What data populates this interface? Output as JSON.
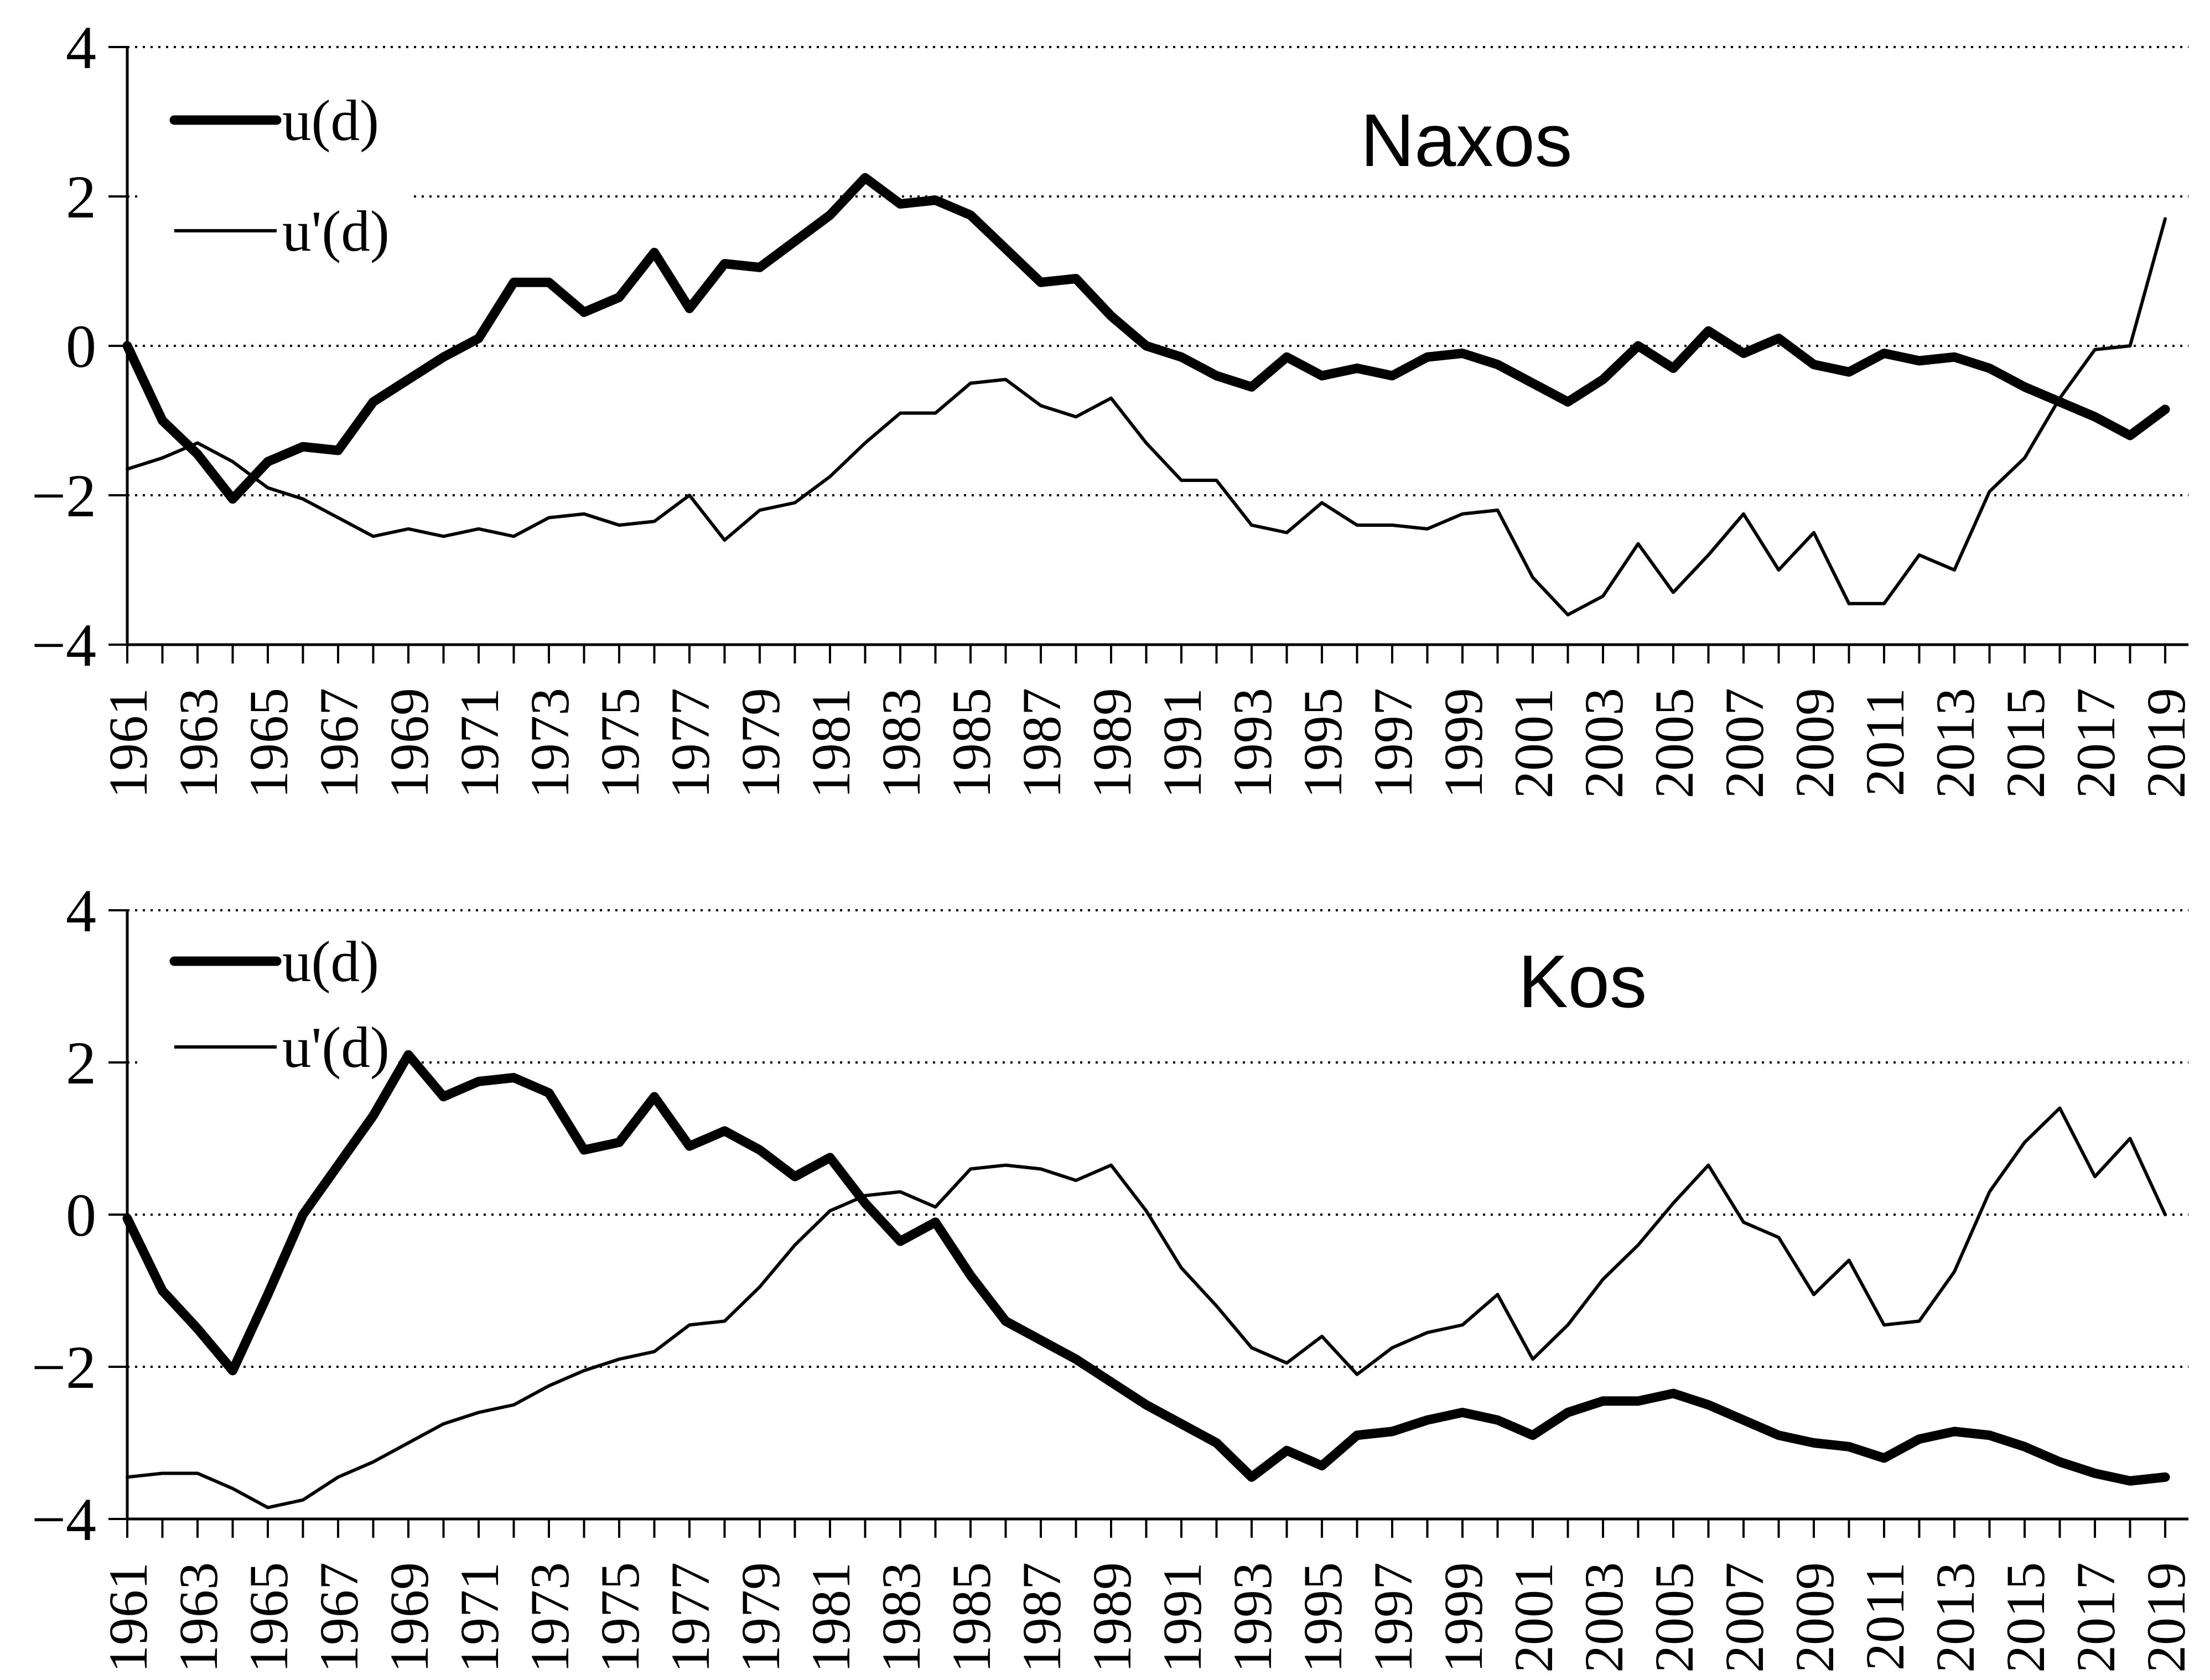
{
  "chart_data": [
    {
      "type": "line",
      "title": "Naxos",
      "legend": [
        {
          "label": "u(d)",
          "style": "thick"
        },
        {
          "label": "u'(d)",
          "style": "thin"
        }
      ],
      "ylim": [
        -4,
        4
      ],
      "y_ticks": [
        4,
        2,
        0,
        -2,
        -4
      ],
      "y_tick_labels": [
        "4",
        "2",
        "0",
        "−2",
        "−4"
      ],
      "grid": "dotted-horizontal",
      "legend_position": "top-left-inside",
      "x": [
        1961,
        1962,
        1963,
        1964,
        1965,
        1966,
        1967,
        1968,
        1969,
        1970,
        1971,
        1972,
        1973,
        1974,
        1975,
        1976,
        1977,
        1978,
        1979,
        1980,
        1981,
        1982,
        1983,
        1984,
        1985,
        1986,
        1987,
        1988,
        1989,
        1990,
        1991,
        1992,
        1993,
        1994,
        1995,
        1996,
        1997,
        1998,
        1999,
        2000,
        2001,
        2002,
        2003,
        2004,
        2005,
        2006,
        2007,
        2008,
        2009,
        2010,
        2011,
        2012,
        2013,
        2014,
        2015,
        2016,
        2017,
        2018,
        2019
      ],
      "x_tick_labels": [
        "1961",
        "1963",
        "1965",
        "1967",
        "1969",
        "1971",
        "1973",
        "1975",
        "1977",
        "1979",
        "1981",
        "1983",
        "1985",
        "1987",
        "1989",
        "1991",
        "1993",
        "1995",
        "1997",
        "1999",
        "2001",
        "2003",
        "2005",
        "2007",
        "2009",
        "2011",
        "2013",
        "2015",
        "2017",
        "2019"
      ],
      "series": [
        {
          "name": "u(d)",
          "style": "thick",
          "values": [
            0.0,
            -1.0,
            -1.45,
            -2.05,
            -1.55,
            -1.35,
            -1.4,
            -0.75,
            -0.45,
            -0.15,
            0.1,
            0.85,
            0.85,
            0.45,
            0.65,
            1.25,
            0.5,
            1.1,
            1.05,
            1.4,
            1.75,
            2.25,
            1.9,
            1.95,
            1.75,
            1.3,
            0.85,
            0.9,
            0.4,
            0.0,
            -0.15,
            -0.4,
            -0.55,
            -0.15,
            -0.4,
            -0.3,
            -0.4,
            -0.15,
            -0.1,
            -0.25,
            -0.5,
            -0.75,
            -0.45,
            0.0,
            -0.3,
            0.2,
            -0.1,
            0.1,
            -0.25,
            -0.35,
            -0.1,
            -0.2,
            -0.15,
            -0.3,
            -0.55,
            -0.75,
            -0.95,
            -1.2,
            -0.85
          ]
        },
        {
          "name": "u'(d)",
          "style": "thin",
          "values": [
            -1.65,
            -1.5,
            -1.3,
            -1.55,
            -1.9,
            -2.05,
            -2.3,
            -2.55,
            -2.45,
            -2.55,
            -2.45,
            -2.55,
            -2.3,
            -2.25,
            -2.4,
            -2.35,
            -2.0,
            -2.6,
            -2.2,
            -2.1,
            -1.75,
            -1.3,
            -0.9,
            -0.9,
            -0.5,
            -0.45,
            -0.8,
            -0.95,
            -0.7,
            -1.3,
            -1.8,
            -1.8,
            -2.4,
            -2.5,
            -2.1,
            -2.4,
            -2.4,
            -2.45,
            -2.25,
            -2.2,
            -3.1,
            -3.6,
            -3.35,
            -2.65,
            -3.3,
            -2.8,
            -2.25,
            -3.0,
            -2.5,
            -3.45,
            -3.45,
            -2.8,
            -3.0,
            -1.95,
            -1.5,
            -0.7,
            -0.05,
            0.0,
            1.7
          ]
        }
      ]
    },
    {
      "type": "line",
      "title": "Kos",
      "legend": [
        {
          "label": "u(d)",
          "style": "thick"
        },
        {
          "label": "u'(d)",
          "style": "thin"
        }
      ],
      "ylim": [
        -4,
        4
      ],
      "y_ticks": [
        4,
        2,
        0,
        -2,
        -4
      ],
      "y_tick_labels": [
        "4",
        "2",
        "0",
        "−2",
        "−4"
      ],
      "grid": "dotted-horizontal",
      "legend_position": "top-left-inside",
      "x": [
        1961,
        1962,
        1963,
        1964,
        1965,
        1966,
        1967,
        1968,
        1969,
        1970,
        1971,
        1972,
        1973,
        1974,
        1975,
        1976,
        1977,
        1978,
        1979,
        1980,
        1981,
        1982,
        1983,
        1984,
        1985,
        1986,
        1987,
        1988,
        1989,
        1990,
        1991,
        1992,
        1993,
        1994,
        1995,
        1996,
        1997,
        1998,
        1999,
        2000,
        2001,
        2002,
        2003,
        2004,
        2005,
        2006,
        2007,
        2008,
        2009,
        2010,
        2011,
        2012,
        2013,
        2014,
        2015,
        2016,
        2017,
        2018,
        2019
      ],
      "x_tick_labels": [
        "1961",
        "1963",
        "1965",
        "1967",
        "1969",
        "1971",
        "1973",
        "1975",
        "1977",
        "1979",
        "1981",
        "1983",
        "1985",
        "1987",
        "1989",
        "1991",
        "1993",
        "1995",
        "1997",
        "1999",
        "2001",
        "2003",
        "2005",
        "2007",
        "2009",
        "2011",
        "2013",
        "2015",
        "2017",
        "2019"
      ],
      "series": [
        {
          "name": "u(d)",
          "style": "thick",
          "values": [
            -0.05,
            -1.0,
            -1.5,
            -2.05,
            -1.05,
            0.0,
            0.65,
            1.3,
            2.1,
            1.55,
            1.75,
            1.8,
            1.6,
            0.85,
            0.95,
            1.55,
            0.9,
            1.1,
            0.85,
            0.5,
            0.75,
            0.15,
            -0.35,
            -0.1,
            -0.8,
            -1.4,
            -1.65,
            -1.9,
            -2.2,
            -2.5,
            -2.75,
            -3.0,
            -3.45,
            -3.1,
            -3.3,
            -2.9,
            -2.85,
            -2.7,
            -2.6,
            -2.7,
            -2.9,
            -2.6,
            -2.45,
            -2.45,
            -2.35,
            -2.5,
            -2.7,
            -2.9,
            -3.0,
            -3.05,
            -3.2,
            -2.95,
            -2.85,
            -2.9,
            -3.05,
            -3.25,
            -3.4,
            -3.5,
            -3.45
          ]
        },
        {
          "name": "u'(d)",
          "style": "thin",
          "values": [
            -3.45,
            -3.4,
            -3.4,
            -3.6,
            -3.85,
            -3.75,
            -3.45,
            -3.25,
            -3.0,
            -2.75,
            -2.6,
            -2.5,
            -2.25,
            -2.05,
            -1.9,
            -1.8,
            -1.45,
            -1.4,
            -0.95,
            -0.4,
            0.05,
            0.25,
            0.3,
            0.1,
            0.6,
            0.65,
            0.6,
            0.45,
            0.65,
            0.05,
            -0.7,
            -1.2,
            -1.75,
            -1.95,
            -1.6,
            -2.1,
            -1.75,
            -1.55,
            -1.45,
            -1.05,
            -1.9,
            -1.45,
            -0.85,
            -0.4,
            0.15,
            0.65,
            -0.1,
            -0.3,
            -1.05,
            -0.6,
            -1.45,
            -1.4,
            -0.75,
            0.3,
            0.95,
            1.4,
            0.5,
            1.0,
            0.0
          ]
        }
      ]
    }
  ]
}
